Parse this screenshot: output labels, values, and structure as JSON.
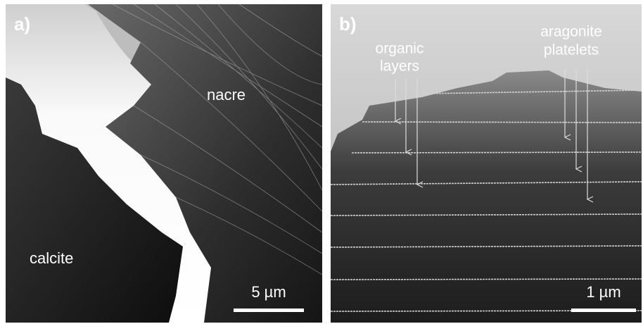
{
  "panels": [
    {
      "label": "a)",
      "annotations": [
        "nacre",
        "calcite"
      ],
      "scale_bar": "5 µm"
    },
    {
      "label": "b)",
      "annotations": [
        [
          "organic",
          "layers"
        ],
        [
          "aragonite",
          "platelets"
        ]
      ],
      "scale_bar": "1 µm"
    }
  ]
}
